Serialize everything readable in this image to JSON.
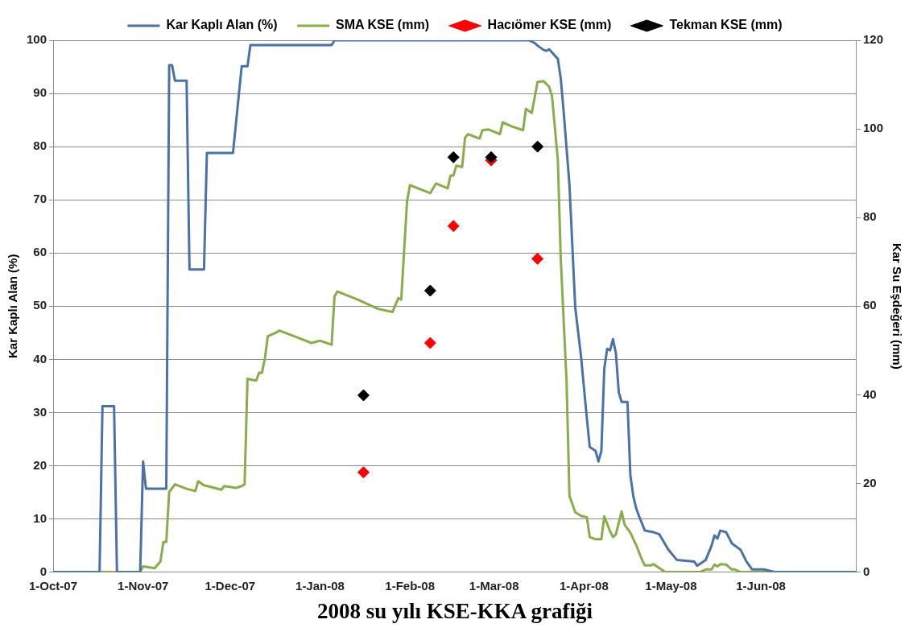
{
  "chart_data": {
    "type": "line",
    "title": "2008 su yılı KSE-KKA grafiği",
    "ylabel": "Kar Kaplı Alan (%)",
    "y2label": "Kar Su Eşdeğeri (mm)",
    "xlim": [
      "2007-10-01",
      "2008-07-04"
    ],
    "xticks": [
      {
        "value": "2007-10-01",
        "label": "1-Oct-07"
      },
      {
        "value": "2007-11-01",
        "label": "1-Nov-07"
      },
      {
        "value": "2007-12-01",
        "label": "1-Dec-07"
      },
      {
        "value": "2008-01-01",
        "label": "1-Jan-08"
      },
      {
        "value": "2008-02-01",
        "label": "1-Feb-08"
      },
      {
        "value": "2008-03-01",
        "label": "1-Mar-08"
      },
      {
        "value": "2008-04-01",
        "label": "1-Apr-08"
      },
      {
        "value": "2008-05-01",
        "label": "1-May-08"
      },
      {
        "value": "2008-06-01",
        "label": "1-Jun-08"
      }
    ],
    "ylim": [
      0,
      100
    ],
    "yticks": [
      0,
      10,
      20,
      30,
      40,
      50,
      60,
      70,
      80,
      90,
      100
    ],
    "y2lim": [
      0,
      120
    ],
    "y2ticks": [
      0,
      20,
      40,
      60,
      80,
      100,
      120
    ],
    "grid": "y",
    "legend": "top",
    "marker": "none",
    "series": [
      {
        "name": "Kar Kaplı Alan (%)",
        "type": "line",
        "color": "#4a72a8",
        "x": [
          "2007-10-01",
          "2007-10-17",
          "2007-10-18",
          "2007-10-22",
          "2007-10-23",
          "2007-10-31",
          "2007-11-01",
          "2007-11-02",
          "2007-11-09",
          "2007-11-10",
          "2007-11-11",
          "2007-11-12",
          "2007-11-16",
          "2007-11-17",
          "2007-11-22",
          "2007-11-23",
          "2007-12-02",
          "2007-12-04",
          "2007-12-05",
          "2007-12-07",
          "2007-12-08",
          "2008-01-05",
          "2008-01-06",
          "2008-03-13",
          "2008-03-15",
          "2008-03-16",
          "2008-03-18",
          "2008-03-19",
          "2008-03-20",
          "2008-03-23",
          "2008-03-24",
          "2008-03-25",
          "2008-03-27",
          "2008-03-29",
          "2008-03-31",
          "2008-04-02",
          "2008-04-03",
          "2008-04-05",
          "2008-04-06",
          "2008-04-07",
          "2008-04-08",
          "2008-04-09",
          "2008-04-10",
          "2008-04-11",
          "2008-04-12",
          "2008-04-13",
          "2008-04-14",
          "2008-04-16",
          "2008-04-17",
          "2008-04-18",
          "2008-04-19",
          "2008-04-20",
          "2008-04-22",
          "2008-04-25",
          "2008-04-27",
          "2008-04-30",
          "2008-05-03",
          "2008-05-09",
          "2008-05-10",
          "2008-05-13",
          "2008-05-15",
          "2008-05-16",
          "2008-05-17",
          "2008-05-18",
          "2008-05-20",
          "2008-05-22",
          "2008-05-25",
          "2008-05-27",
          "2008-05-29",
          "2008-06-02",
          "2008-06-06",
          "2008-07-04"
        ],
        "values": [
          0,
          0,
          31.2,
          31.2,
          0,
          0,
          20.8,
          15.7,
          15.7,
          95.3,
          95.3,
          92.4,
          92.4,
          56.9,
          56.9,
          78.8,
          78.8,
          89.7,
          95.1,
          95.1,
          99.1,
          99.1,
          100,
          100,
          99.5,
          99,
          98.2,
          98,
          98.3,
          96.5,
          92.8,
          86.6,
          72.8,
          49.7,
          40.5,
          28.9,
          23.5,
          22.8,
          20.8,
          22.8,
          38.2,
          42,
          41.7,
          43.8,
          41.2,
          33.8,
          32,
          32,
          18.2,
          14.3,
          12,
          10.5,
          7.8,
          7.5,
          7.1,
          4.3,
          2.3,
          2,
          1.2,
          2.3,
          5,
          6.9,
          6.3,
          7.8,
          7.5,
          5.4,
          4.2,
          2,
          0.5,
          0.5,
          0,
          0
        ]
      },
      {
        "name": "SMA KSE (mm)",
        "type": "line",
        "axis": "y2",
        "color": "#8aac4b",
        "x": [
          "2007-10-01",
          "2007-10-31",
          "2007-11-01",
          "2007-11-05",
          "2007-11-07",
          "2007-11-08",
          "2007-11-09",
          "2007-11-10",
          "2007-11-12",
          "2007-11-16",
          "2007-11-19",
          "2007-11-20",
          "2007-11-22",
          "2007-11-28",
          "2007-11-29",
          "2007-12-03",
          "2007-12-05",
          "2007-12-06",
          "2007-12-07",
          "2007-12-10",
          "2007-12-11",
          "2007-12-12",
          "2007-12-13",
          "2007-12-14",
          "2007-12-17",
          "2007-12-18",
          "2007-12-24",
          "2007-12-29",
          "2008-01-01",
          "2008-01-05",
          "2008-01-06",
          "2008-01-07",
          "2008-01-14",
          "2008-01-21",
          "2008-01-26",
          "2008-01-28",
          "2008-01-29",
          "2008-01-31",
          "2008-02-01",
          "2008-02-08",
          "2008-02-10",
          "2008-02-14",
          "2008-02-15",
          "2008-02-16",
          "2008-02-17",
          "2008-02-19",
          "2008-02-20",
          "2008-02-21",
          "2008-02-25",
          "2008-02-26",
          "2008-02-28",
          "2008-03-03",
          "2008-03-04",
          "2008-03-07",
          "2008-03-11",
          "2008-03-12",
          "2008-03-14",
          "2008-03-16",
          "2008-03-18",
          "2008-03-20",
          "2008-03-21",
          "2008-03-23",
          "2008-03-24",
          "2008-03-26",
          "2008-03-27",
          "2008-03-29",
          "2008-03-31",
          "2008-04-02",
          "2008-04-03",
          "2008-04-05",
          "2008-04-07",
          "2008-04-08",
          "2008-04-10",
          "2008-04-11",
          "2008-04-12",
          "2008-04-14",
          "2008-04-15",
          "2008-04-17",
          "2008-04-19",
          "2008-04-21",
          "2008-04-22",
          "2008-04-24",
          "2008-04-25",
          "2008-04-29",
          "2008-05-11",
          "2008-05-13",
          "2008-05-15",
          "2008-05-16",
          "2008-05-17",
          "2008-05-18",
          "2008-05-20",
          "2008-05-22",
          "2008-05-23",
          "2008-05-25",
          "2008-07-04"
        ],
        "values": [
          0,
          0,
          1.3,
          0.9,
          2.4,
          6.8,
          6.8,
          18.1,
          19.8,
          18.8,
          18.3,
          20.5,
          19.6,
          18.6,
          19.4,
          19,
          19.4,
          19.8,
          43.6,
          43.2,
          45,
          45,
          48.2,
          53.2,
          54.1,
          54.5,
          53,
          51.7,
          52.2,
          51.3,
          62.2,
          63.3,
          61.5,
          59.4,
          58.7,
          61.8,
          61.5,
          83.6,
          87.3,
          85.5,
          87.7,
          86.6,
          89.5,
          89.5,
          91.7,
          91.4,
          98,
          98.8,
          97.8,
          99.7,
          99.9,
          98.8,
          101.5,
          100.6,
          99.7,
          104.5,
          103.6,
          110.6,
          110.8,
          109.5,
          107.3,
          92.9,
          70.7,
          43,
          17.2,
          13.5,
          12.7,
          12.4,
          7.9,
          7.4,
          7.4,
          12.6,
          9.2,
          7.9,
          8.5,
          13.7,
          10.7,
          8.9,
          6.1,
          2.8,
          1.5,
          1.5,
          1.8,
          0,
          0,
          0.6,
          0.6,
          1.7,
          1.3,
          1.8,
          1.7,
          0.6,
          0.6,
          0,
          0
        ]
      },
      {
        "name": "Hacıömer KSE (mm)",
        "type": "scatter",
        "axis": "y2",
        "marker": "diamond",
        "color": "#ff0000",
        "x": [
          "2008-01-16",
          "2008-02-08",
          "2008-02-16",
          "2008-02-29",
          "2008-03-16"
        ],
        "values": [
          22.5,
          51.7,
          78.1,
          92.9,
          70.7
        ]
      },
      {
        "name": "Tekman KSE (mm)",
        "type": "scatter",
        "axis": "y2",
        "marker": "diamond",
        "color": "#000000",
        "x": [
          "2008-01-16",
          "2008-02-08",
          "2008-02-16",
          "2008-02-29",
          "2008-03-16"
        ],
        "values": [
          39.9,
          63.5,
          93.6,
          93.6,
          96
        ]
      }
    ]
  }
}
